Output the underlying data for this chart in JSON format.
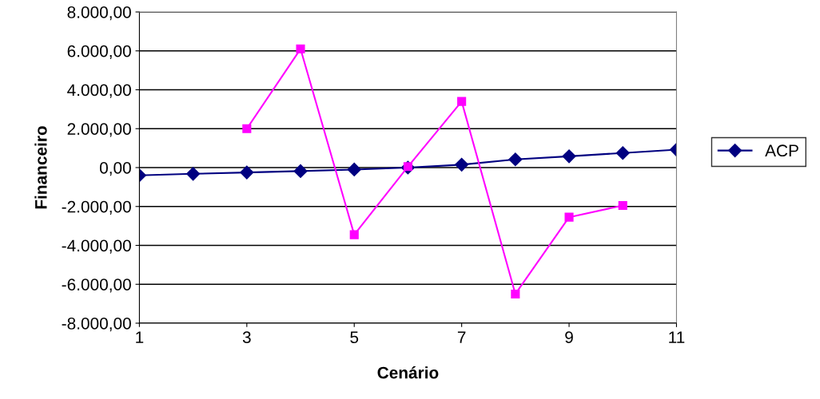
{
  "chart_data": {
    "type": "line",
    "xlabel": "Cenário",
    "ylabel": "Financeiro",
    "x": [
      1,
      2,
      3,
      4,
      5,
      6,
      7,
      8,
      9,
      10,
      11
    ],
    "series": [
      {
        "name": "ACP",
        "color": "#000080",
        "marker": "diamond",
        "values": [
          -400,
          -320,
          -250,
          -180,
          -100,
          0,
          150,
          420,
          580,
          750,
          920
        ]
      },
      {
        "color": "#ff00ff",
        "marker": "square",
        "values": [
          null,
          null,
          2000,
          6100,
          -3450,
          50,
          3400,
          -6500,
          -2550,
          -1950,
          null
        ]
      }
    ],
    "xlim": [
      1,
      11
    ],
    "xticks": [
      1,
      3,
      5,
      7,
      9,
      11
    ],
    "ylim": [
      -8000,
      8000
    ],
    "yticks": [
      {
        "value": -8000,
        "label": "-8.000,00"
      },
      {
        "value": -6000,
        "label": "-6.000,00"
      },
      {
        "value": -4000,
        "label": "-4.000,00"
      },
      {
        "value": -2000,
        "label": "-2.000,00"
      },
      {
        "value": 0,
        "label": "0,00"
      },
      {
        "value": 2000,
        "label": "2.000,00"
      },
      {
        "value": 4000,
        "label": "4.000,00"
      },
      {
        "value": 6000,
        "label": "6.000,00"
      },
      {
        "value": 8000,
        "label": "8.000,00"
      }
    ],
    "grid": "y",
    "legend": "right",
    "line_style": "solid"
  }
}
